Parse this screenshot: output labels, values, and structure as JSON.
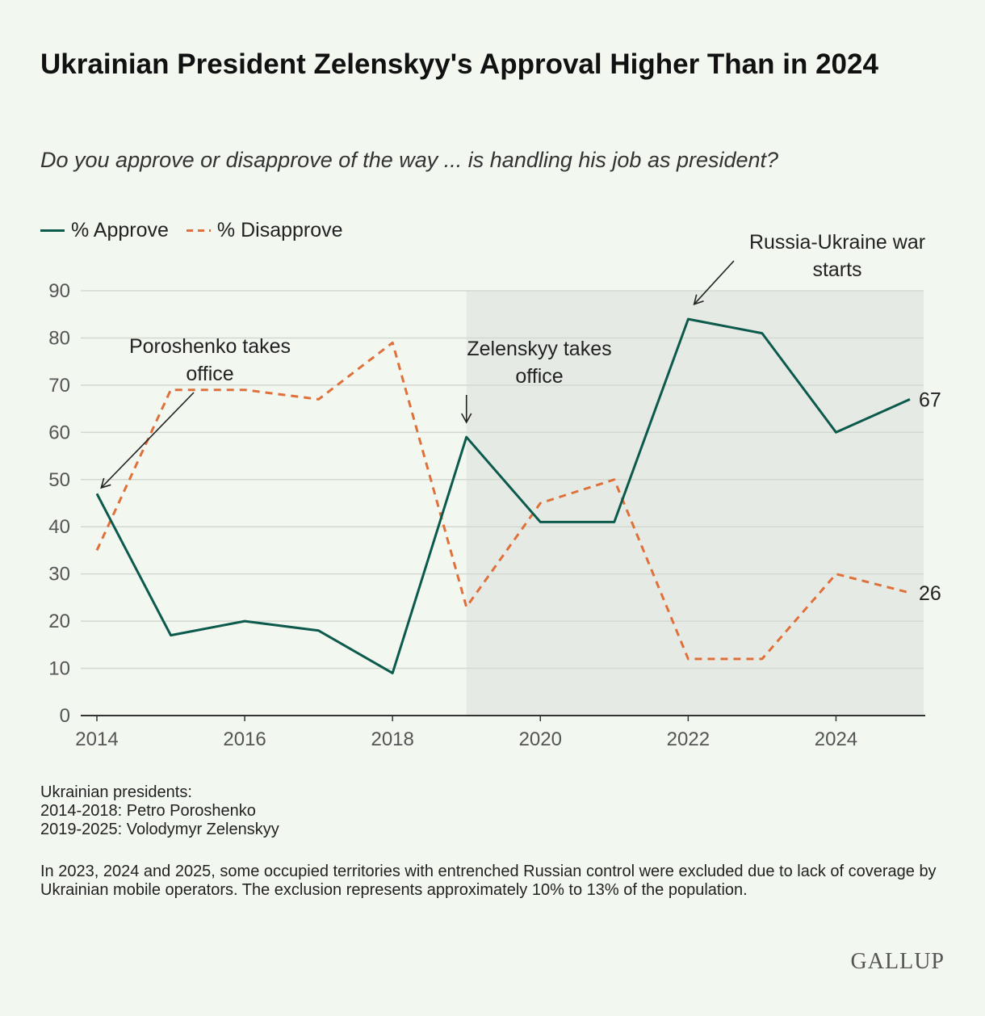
{
  "title": "Ukrainian President Zelenskyy's Approval Higher Than in 2024",
  "subtitle": "Do you approve or disapprove of the way ... is handling his job as president?",
  "legend": {
    "approve": "% Approve",
    "disapprove": "% Disapprove"
  },
  "chart_data": {
    "type": "line",
    "x": [
      2014,
      2015,
      2016,
      2017,
      2018,
      2019,
      2020,
      2021,
      2022,
      2023,
      2024,
      2025
    ],
    "series": [
      {
        "name": "% Approve",
        "color": "#0c5a4c",
        "style": "solid",
        "values": [
          47,
          17,
          20,
          18,
          9,
          59,
          41,
          41,
          84,
          81,
          60,
          67
        ]
      },
      {
        "name": "% Disapprove",
        "color": "#e0703a",
        "style": "dashed",
        "values": [
          35,
          69,
          69,
          67,
          79,
          23,
          45,
          50,
          12,
          12,
          30,
          26
        ]
      }
    ],
    "end_labels": [
      "67",
      "26"
    ],
    "xticks": [
      2014,
      2016,
      2018,
      2020,
      2022,
      2024
    ],
    "xtick_labels": [
      "2014",
      "2016",
      "2018",
      "2020",
      "2022",
      "2024"
    ],
    "yticks": [
      0,
      10,
      20,
      30,
      40,
      50,
      60,
      70,
      80,
      90
    ],
    "ytick_labels": [
      "0",
      "10",
      "20",
      "30",
      "40",
      "50",
      "60",
      "70",
      "80",
      "90"
    ],
    "xlim": [
      2014,
      2025
    ],
    "ylim": [
      0,
      90
    ],
    "grid": "horizontal",
    "legend_position": "top-left",
    "shaded_region": {
      "x": [
        2019,
        2025
      ],
      "color": "#e5ebe4"
    },
    "annotations": [
      {
        "lines": [
          "Poroshenko takes",
          "office"
        ],
        "target_x": 2014,
        "target_y": 47
      },
      {
        "lines": [
          "Zelenskyy takes",
          "office"
        ],
        "target_x": 2019,
        "target_y": 59
      },
      {
        "lines": [
          "Russia-Ukraine war",
          "starts"
        ],
        "target_x": 2022,
        "target_y": 84
      }
    ]
  },
  "footnotes": {
    "presidents": [
      "Ukrainian presidents:",
      "2014-2018: Petro Poroshenko",
      "2019-2025: Volodymyr Zelenskyy"
    ],
    "coverage": "In 2023, 2024 and 2025, some occupied territories with entrenched Russian control were excluded due to lack of coverage by Ukrainian mobile operators. The exclusion represents approximately 10% to 13% of the population."
  },
  "logo": "GALLUP"
}
